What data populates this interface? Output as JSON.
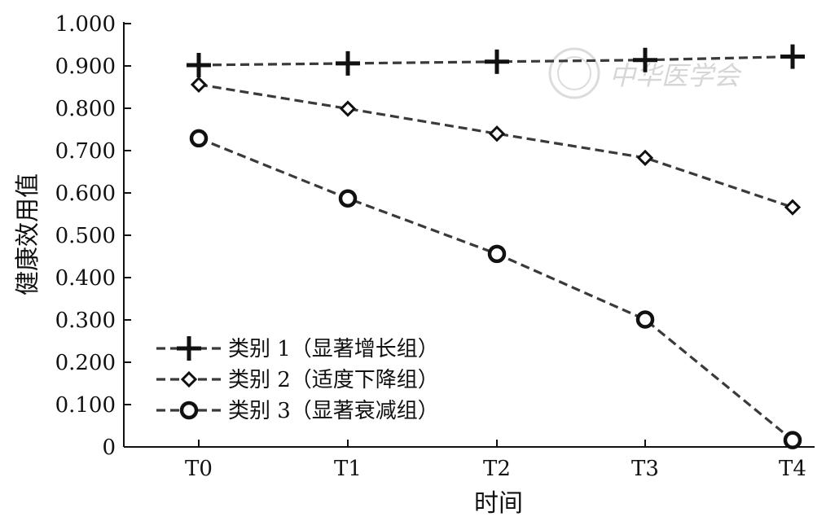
{
  "chart_data": {
    "type": "line",
    "categories": [
      "T0",
      "T1",
      "T2",
      "T3",
      "T4"
    ],
    "xlabel": "时间",
    "ylabel": "健康效用值",
    "ylim": [
      0,
      1.0
    ],
    "yticks": [
      "0",
      "0.100",
      "0.200",
      "0.300",
      "0.400",
      "0.500",
      "0.600",
      "0.700",
      "0.800",
      "0.900",
      "1.000"
    ],
    "grid": false,
    "legend_position": "bottom-left",
    "series": [
      {
        "name": "类别 1（显著增长组）",
        "marker": "plus",
        "color": "#3a3a3a",
        "values": [
          0.902,
          0.906,
          0.91,
          0.914,
          0.922
        ]
      },
      {
        "name": "类别 2（适度下降组）",
        "marker": "diamond",
        "color": "#3a3a3a",
        "values": [
          0.856,
          0.799,
          0.74,
          0.683,
          0.566
        ]
      },
      {
        "name": "类别 3（显著衰减组）",
        "marker": "circle",
        "color": "#3a3a3a",
        "values": [
          0.729,
          0.587,
          0.456,
          0.301,
          0.016
        ]
      }
    ]
  },
  "watermark": {
    "text": "中华医学会",
    "kind": "logo-watermark"
  }
}
